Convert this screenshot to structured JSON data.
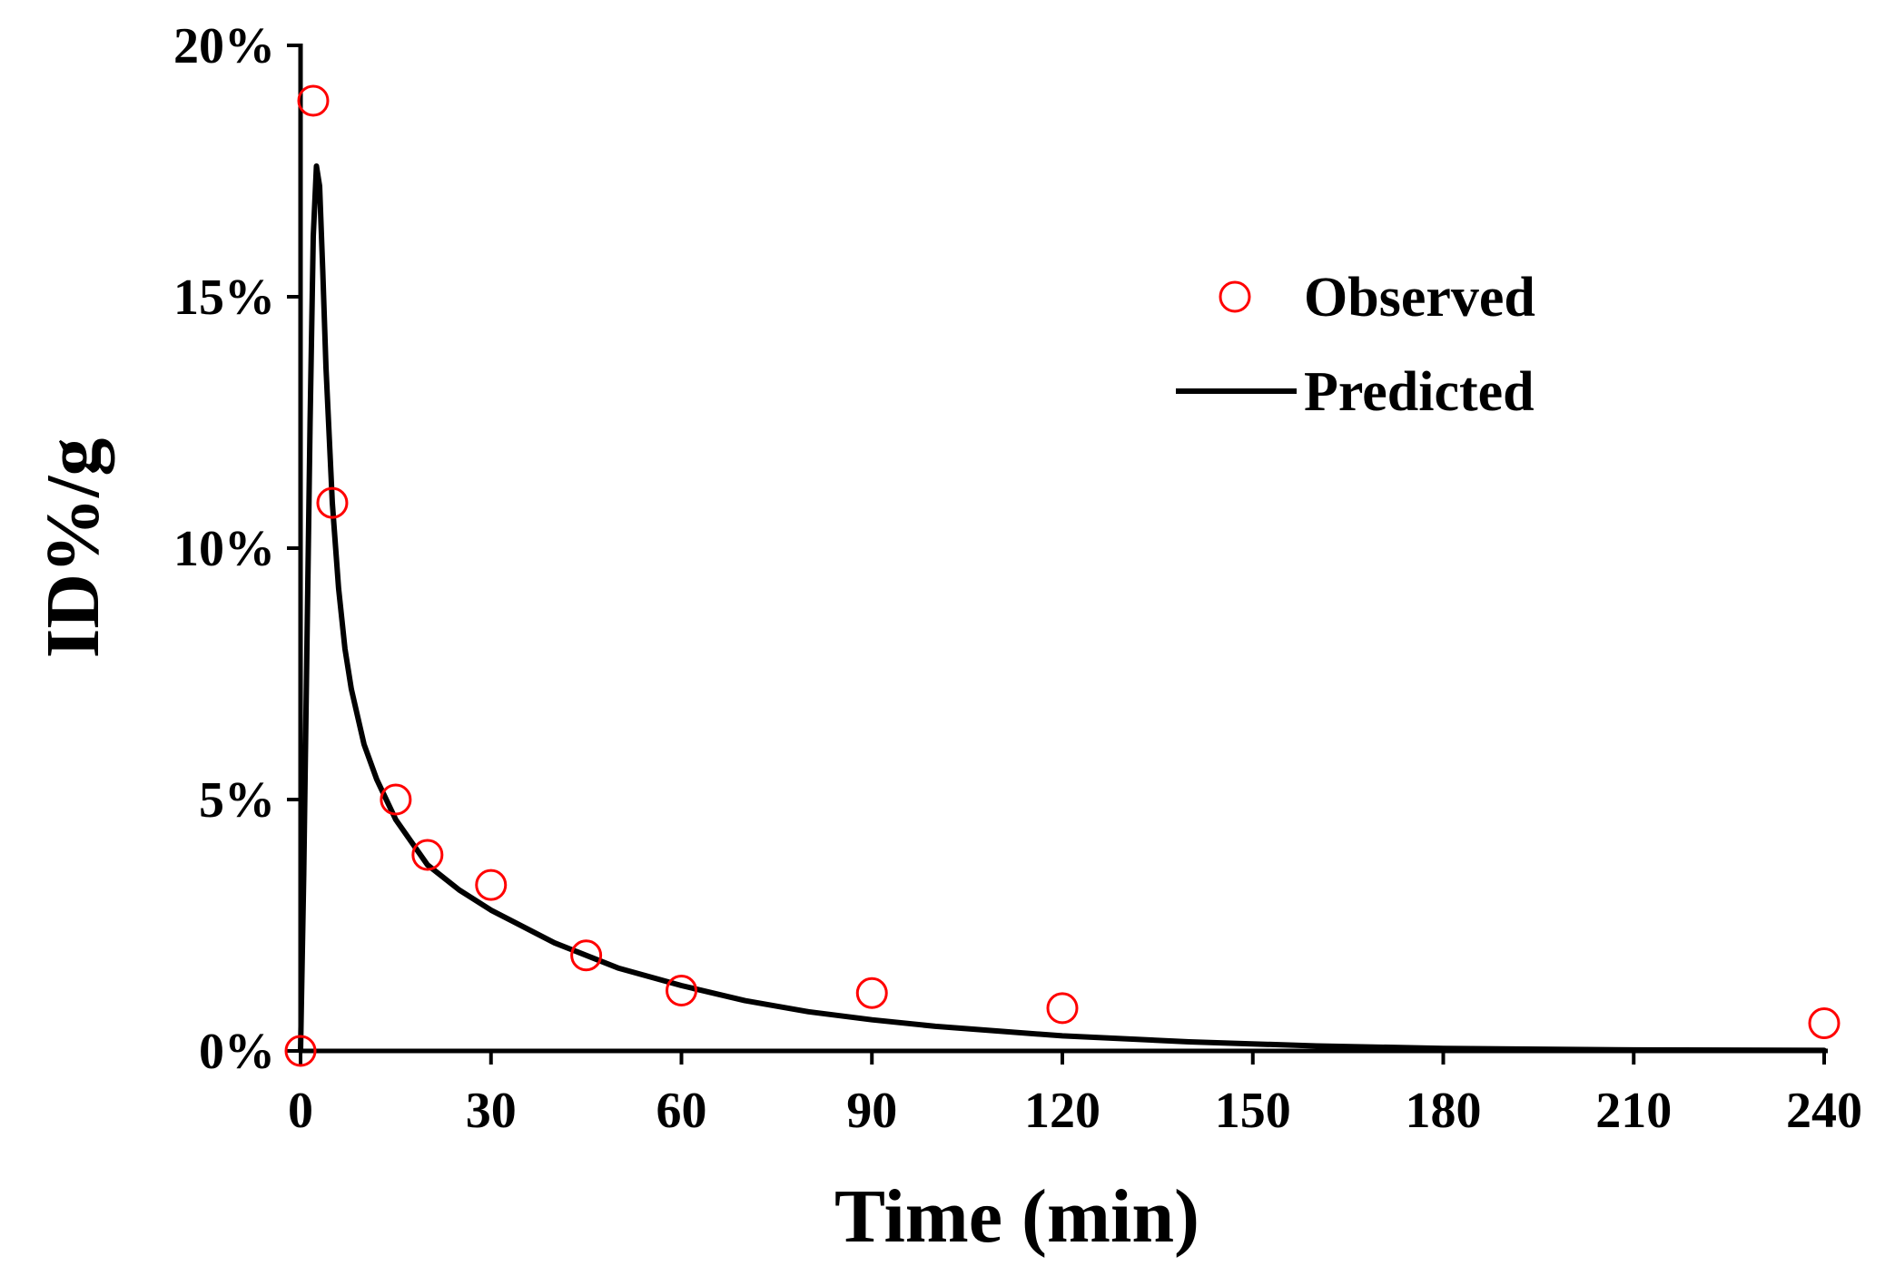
{
  "chart_data": {
    "type": "scatter",
    "title": "",
    "xlabel": "Time (min)",
    "ylabel": "ID%/g",
    "xlim": [
      0,
      240
    ],
    "ylim": [
      0,
      20
    ],
    "x_ticks": [
      0,
      30,
      60,
      90,
      120,
      150,
      180,
      210,
      240
    ],
    "x_tick_labels": [
      "0",
      "30",
      "60",
      "90",
      "120",
      "150",
      "180",
      "210",
      "240"
    ],
    "y_ticks": [
      0,
      5,
      10,
      15,
      20
    ],
    "y_tick_labels": [
      "0%",
      "5%",
      "10%",
      "15%",
      "20%"
    ],
    "grid": false,
    "legend_position": "top-right",
    "series": [
      {
        "name": "Observed",
        "kind": "scatter",
        "marker": "open-circle",
        "color": "#ff0000",
        "x": [
          0,
          2,
          5,
          15,
          20,
          30,
          45,
          60,
          90,
          120,
          240
        ],
        "y": [
          0.0,
          18.9,
          10.9,
          5.0,
          3.9,
          3.3,
          1.9,
          1.2,
          1.15,
          0.85,
          0.55
        ]
      },
      {
        "name": "Predicted",
        "kind": "line",
        "color": "#000000",
        "x": [
          0,
          0.5,
          1,
          1.5,
          2,
          2.5,
          3,
          3.5,
          4,
          5,
          6,
          7,
          8,
          10,
          12,
          15,
          20,
          25,
          30,
          40,
          50,
          60,
          70,
          80,
          90,
          100,
          120,
          140,
          160,
          180,
          210,
          240
        ],
        "y": [
          0.0,
          3.5,
          8.0,
          12.5,
          16.2,
          17.6,
          17.2,
          15.5,
          13.6,
          10.9,
          9.2,
          8.0,
          7.2,
          6.1,
          5.4,
          4.6,
          3.7,
          3.2,
          2.8,
          2.15,
          1.65,
          1.3,
          1.0,
          0.78,
          0.62,
          0.49,
          0.3,
          0.18,
          0.1,
          0.05,
          0.02,
          0.01
        ]
      }
    ]
  }
}
